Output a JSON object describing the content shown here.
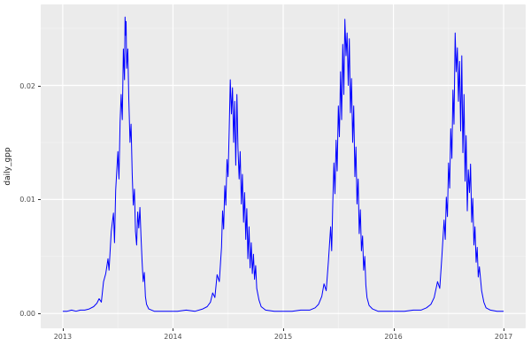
{
  "chart_data": {
    "type": "line",
    "title": "",
    "xlabel": "",
    "ylabel": "daily_gpp",
    "legend": "none",
    "grid": "on",
    "panel_background": "#EBEBEB",
    "grid_major_color": "#FFFFFF",
    "grid_minor_color": "#F5F5F5",
    "line_color": "#0000FF",
    "tick_label_color": "#4D4D4D",
    "axis_title_color": "#1A1A1A",
    "xlim": [
      2012.8,
      2017.2
    ],
    "ylim": [
      -0.0013,
      0.0271
    ],
    "x_ticks": [
      2013,
      2014,
      2015,
      2016,
      2017
    ],
    "x_tick_labels": [
      "2013",
      "2014",
      "2015",
      "2016",
      "2017"
    ],
    "x_minor": [
      2013.5,
      2014.5,
      2015.5,
      2016.5
    ],
    "y_ticks": [
      0.0,
      0.01,
      0.02
    ],
    "y_tick_labels": [
      "0.00",
      "0.01",
      "0.02"
    ],
    "y_minor": [
      0.005,
      0.015,
      0.025
    ],
    "series": [
      {
        "name": "daily_gpp",
        "points": [
          [
            2013.0,
            0.0002
          ],
          [
            2013.04,
            0.0002
          ],
          [
            2013.08,
            0.0003
          ],
          [
            2013.12,
            0.0002
          ],
          [
            2013.16,
            0.0003
          ],
          [
            2013.2,
            0.0003
          ],
          [
            2013.24,
            0.0004
          ],
          [
            2013.28,
            0.0006
          ],
          [
            2013.31,
            0.0009
          ],
          [
            2013.33,
            0.0013
          ],
          [
            2013.35,
            0.001
          ],
          [
            2013.37,
            0.0028
          ],
          [
            2013.39,
            0.0035
          ],
          [
            2013.41,
            0.0048
          ],
          [
            2013.42,
            0.0038
          ],
          [
            2013.44,
            0.0072
          ],
          [
            2013.46,
            0.0088
          ],
          [
            2013.47,
            0.0062
          ],
          [
            2013.48,
            0.0108
          ],
          [
            2013.5,
            0.0142
          ],
          [
            2013.51,
            0.0118
          ],
          [
            2013.52,
            0.0168
          ],
          [
            2013.53,
            0.0192
          ],
          [
            2013.54,
            0.017
          ],
          [
            2013.55,
            0.0232
          ],
          [
            2013.56,
            0.0205
          ],
          [
            2013.565,
            0.026
          ],
          [
            2013.57,
            0.0244
          ],
          [
            2013.575,
            0.0256
          ],
          [
            2013.58,
            0.0215
          ],
          [
            2013.59,
            0.0232
          ],
          [
            2013.6,
            0.0186
          ],
          [
            2013.61,
            0.015
          ],
          [
            2013.62,
            0.0166
          ],
          [
            2013.63,
            0.0122
          ],
          [
            2013.64,
            0.0095
          ],
          [
            2013.65,
            0.0109
          ],
          [
            2013.66,
            0.0072
          ],
          [
            2013.67,
            0.006
          ],
          [
            2013.68,
            0.0089
          ],
          [
            2013.69,
            0.0075
          ],
          [
            2013.7,
            0.0093
          ],
          [
            2013.71,
            0.0068
          ],
          [
            2013.72,
            0.0045
          ],
          [
            2013.73,
            0.0028
          ],
          [
            2013.74,
            0.0036
          ],
          [
            2013.75,
            0.0015
          ],
          [
            2013.76,
            0.0008
          ],
          [
            2013.78,
            0.0004
          ],
          [
            2013.83,
            0.0002
          ],
          [
            2013.9,
            0.0002
          ],
          [
            2013.96,
            0.0002
          ],
          [
            2014.04,
            0.0002
          ],
          [
            2014.12,
            0.0003
          ],
          [
            2014.2,
            0.0002
          ],
          [
            2014.27,
            0.0004
          ],
          [
            2014.31,
            0.0006
          ],
          [
            2014.34,
            0.001
          ],
          [
            2014.36,
            0.0018
          ],
          [
            2014.38,
            0.0014
          ],
          [
            2014.4,
            0.0034
          ],
          [
            2014.42,
            0.0028
          ],
          [
            2014.44,
            0.0058
          ],
          [
            2014.45,
            0.009
          ],
          [
            2014.46,
            0.0074
          ],
          [
            2014.47,
            0.0112
          ],
          [
            2014.48,
            0.0095
          ],
          [
            2014.49,
            0.0135
          ],
          [
            2014.5,
            0.012
          ],
          [
            2014.51,
            0.0162
          ],
          [
            2014.52,
            0.0205
          ],
          [
            2014.53,
            0.0175
          ],
          [
            2014.54,
            0.0198
          ],
          [
            2014.55,
            0.015
          ],
          [
            2014.56,
            0.0186
          ],
          [
            2014.57,
            0.013
          ],
          [
            2014.58,
            0.0192
          ],
          [
            2014.59,
            0.0145
          ],
          [
            2014.6,
            0.0118
          ],
          [
            2014.61,
            0.0142
          ],
          [
            2014.62,
            0.0096
          ],
          [
            2014.63,
            0.0122
          ],
          [
            2014.64,
            0.008
          ],
          [
            2014.65,
            0.0106
          ],
          [
            2014.66,
            0.0065
          ],
          [
            2014.67,
            0.0092
          ],
          [
            2014.68,
            0.0048
          ],
          [
            2014.69,
            0.0076
          ],
          [
            2014.7,
            0.004
          ],
          [
            2014.71,
            0.0062
          ],
          [
            2014.72,
            0.0035
          ],
          [
            2014.73,
            0.0052
          ],
          [
            2014.74,
            0.003
          ],
          [
            2014.75,
            0.0042
          ],
          [
            2014.76,
            0.0022
          ],
          [
            2014.78,
            0.0012
          ],
          [
            2014.8,
            0.0006
          ],
          [
            2014.84,
            0.0003
          ],
          [
            2014.92,
            0.0002
          ],
          [
            2015.0,
            0.0002
          ],
          [
            2015.08,
            0.0002
          ],
          [
            2015.16,
            0.0003
          ],
          [
            2015.24,
            0.0003
          ],
          [
            2015.29,
            0.0005
          ],
          [
            2015.32,
            0.0008
          ],
          [
            2015.35,
            0.0015
          ],
          [
            2015.37,
            0.0026
          ],
          [
            2015.39,
            0.002
          ],
          [
            2015.41,
            0.0046
          ],
          [
            2015.43,
            0.0076
          ],
          [
            2015.44,
            0.0055
          ],
          [
            2015.45,
            0.0096
          ],
          [
            2015.46,
            0.0132
          ],
          [
            2015.47,
            0.0105
          ],
          [
            2015.48,
            0.0152
          ],
          [
            2015.49,
            0.0125
          ],
          [
            2015.5,
            0.0182
          ],
          [
            2015.51,
            0.0155
          ],
          [
            2015.52,
            0.0212
          ],
          [
            2015.53,
            0.017
          ],
          [
            2015.54,
            0.0236
          ],
          [
            2015.55,
            0.0192
          ],
          [
            2015.56,
            0.0258
          ],
          [
            2015.57,
            0.0226
          ],
          [
            2015.58,
            0.0246
          ],
          [
            2015.59,
            0.02
          ],
          [
            2015.6,
            0.0241
          ],
          [
            2015.61,
            0.0176
          ],
          [
            2015.62,
            0.0206
          ],
          [
            2015.63,
            0.015
          ],
          [
            2015.64,
            0.0182
          ],
          [
            2015.65,
            0.012
          ],
          [
            2015.66,
            0.0146
          ],
          [
            2015.67,
            0.0096
          ],
          [
            2015.68,
            0.0118
          ],
          [
            2015.69,
            0.007
          ],
          [
            2015.7,
            0.0091
          ],
          [
            2015.71,
            0.0055
          ],
          [
            2015.72,
            0.0068
          ],
          [
            2015.73,
            0.0038
          ],
          [
            2015.74,
            0.005
          ],
          [
            2015.75,
            0.0025
          ],
          [
            2015.76,
            0.0014
          ],
          [
            2015.78,
            0.0007
          ],
          [
            2015.81,
            0.0004
          ],
          [
            2015.86,
            0.0002
          ],
          [
            2015.94,
            0.0002
          ],
          [
            2016.02,
            0.0002
          ],
          [
            2016.1,
            0.0002
          ],
          [
            2016.18,
            0.0003
          ],
          [
            2016.25,
            0.0003
          ],
          [
            2016.3,
            0.0005
          ],
          [
            2016.34,
            0.0008
          ],
          [
            2016.37,
            0.0014
          ],
          [
            2016.4,
            0.0028
          ],
          [
            2016.42,
            0.0022
          ],
          [
            2016.44,
            0.005
          ],
          [
            2016.46,
            0.0082
          ],
          [
            2016.47,
            0.0065
          ],
          [
            2016.48,
            0.0102
          ],
          [
            2016.49,
            0.0085
          ],
          [
            2016.5,
            0.0132
          ],
          [
            2016.51,
            0.011
          ],
          [
            2016.52,
            0.0162
          ],
          [
            2016.53,
            0.0136
          ],
          [
            2016.54,
            0.0196
          ],
          [
            2016.55,
            0.0166
          ],
          [
            2016.56,
            0.0246
          ],
          [
            2016.57,
            0.0212
          ],
          [
            2016.58,
            0.0233
          ],
          [
            2016.59,
            0.0186
          ],
          [
            2016.6,
            0.0221
          ],
          [
            2016.61,
            0.016
          ],
          [
            2016.62,
            0.0226
          ],
          [
            2016.63,
            0.0141
          ],
          [
            2016.64,
            0.0192
          ],
          [
            2016.65,
            0.0116
          ],
          [
            2016.66,
            0.0156
          ],
          [
            2016.67,
            0.009
          ],
          [
            2016.68,
            0.0126
          ],
          [
            2016.69,
            0.0106
          ],
          [
            2016.7,
            0.0131
          ],
          [
            2016.71,
            0.008
          ],
          [
            2016.72,
            0.0101
          ],
          [
            2016.73,
            0.006
          ],
          [
            2016.74,
            0.0076
          ],
          [
            2016.75,
            0.0045
          ],
          [
            2016.76,
            0.0058
          ],
          [
            2016.77,
            0.0032
          ],
          [
            2016.78,
            0.0041
          ],
          [
            2016.8,
            0.002
          ],
          [
            2016.82,
            0.001
          ],
          [
            2016.84,
            0.0005
          ],
          [
            2016.88,
            0.0003
          ],
          [
            2016.94,
            0.0002
          ],
          [
            2017.0,
            0.0002
          ]
        ]
      }
    ]
  }
}
